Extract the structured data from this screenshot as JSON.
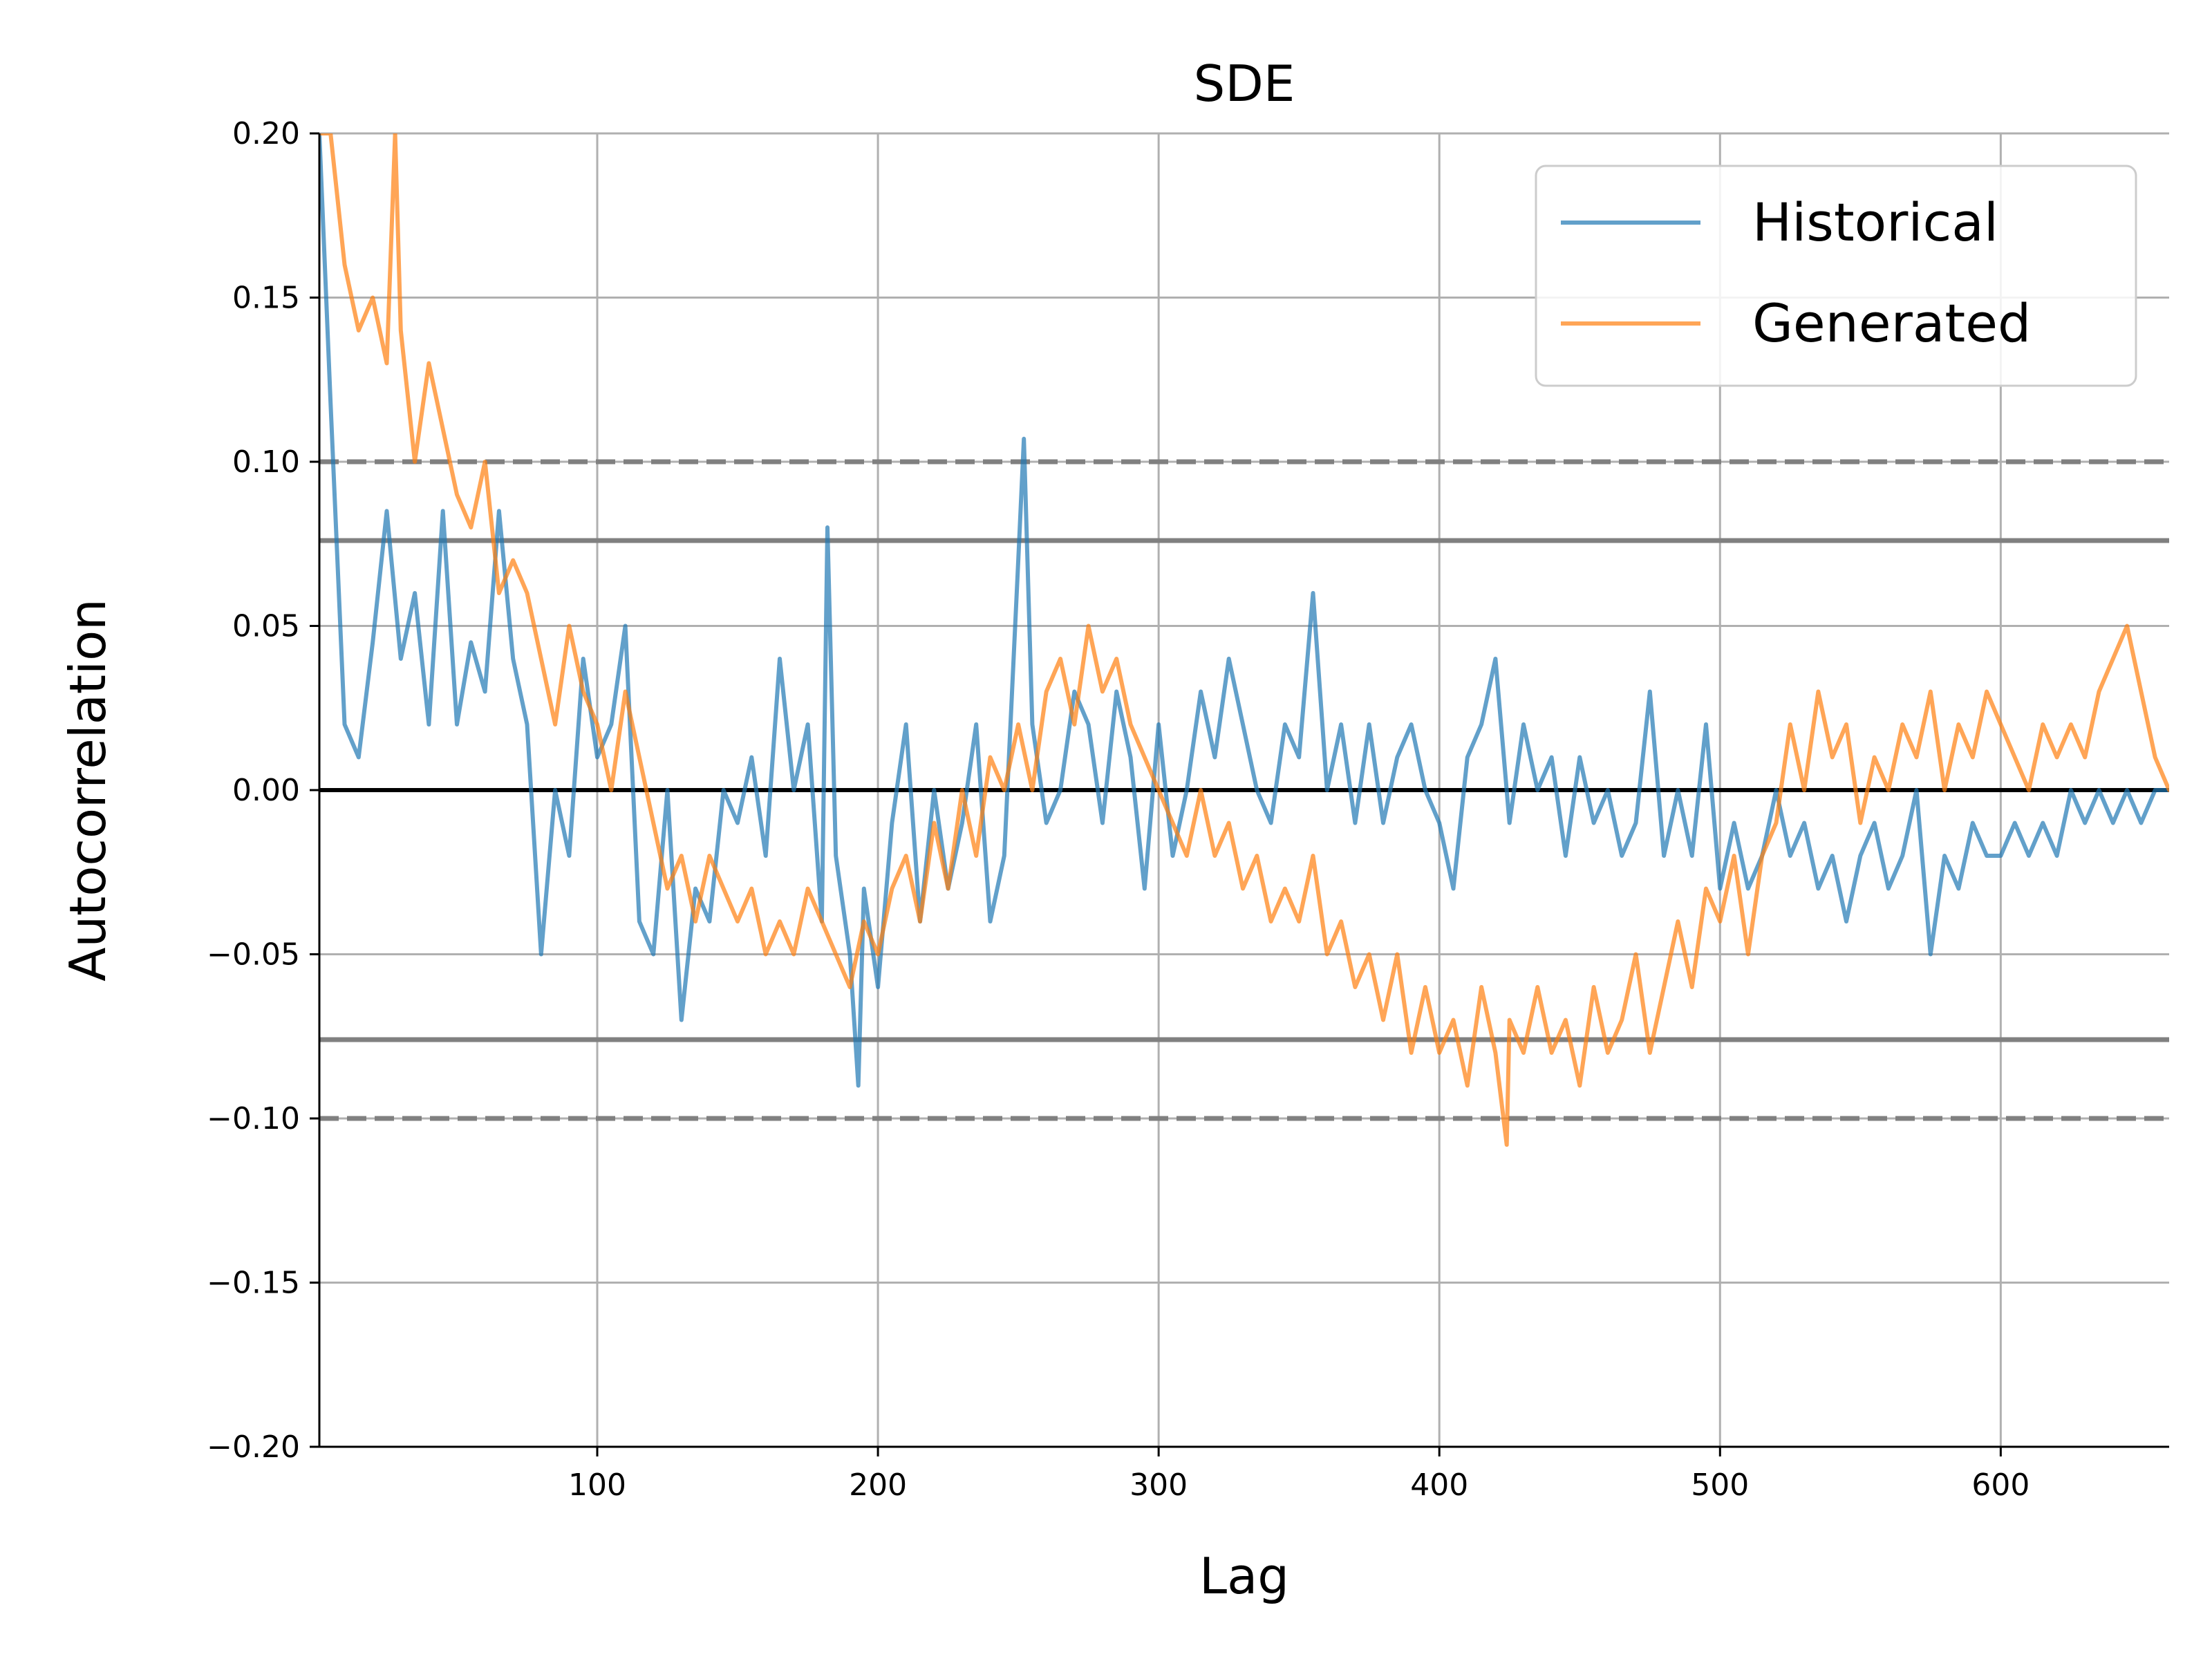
{
  "chart_data": {
    "type": "line",
    "title": "SDE",
    "xlabel": "Lag",
    "ylabel": "Autocorrelation",
    "xlim": [
      1,
      660
    ],
    "ylim": [
      -0.2,
      0.2
    ],
    "xticks": [
      100,
      200,
      300,
      400,
      500,
      600
    ],
    "xtick_labels": [
      "100",
      "200",
      "300",
      "400",
      "500",
      "600"
    ],
    "yticks": [
      -0.2,
      -0.15,
      -0.1,
      -0.05,
      0.0,
      0.05,
      0.1,
      0.15,
      0.2
    ],
    "ytick_labels": [
      "−0.20",
      "−0.15",
      "−0.10",
      "−0.05",
      "0.00",
      "0.05",
      "0.10",
      "0.15",
      "0.20"
    ],
    "grid": true,
    "legend_position": "top-right",
    "reference_lines": {
      "zero": 0.0,
      "solid_band": [
        0.076,
        -0.076
      ],
      "dashed_band": [
        0.1,
        -0.1
      ]
    },
    "colors": {
      "Historical": "#1f77b4",
      "Generated": "#ff7f0e",
      "reference": "#808080",
      "zero": "#000000",
      "grid": "#b0b0b0"
    },
    "series": [
      {
        "name": "Historical",
        "x": [
          1,
          5,
          10,
          15,
          20,
          25,
          30,
          35,
          40,
          45,
          50,
          55,
          60,
          65,
          70,
          75,
          80,
          85,
          90,
          95,
          100,
          105,
          110,
          115,
          120,
          125,
          130,
          135,
          140,
          145,
          150,
          155,
          160,
          165,
          170,
          175,
          180,
          182,
          185,
          190,
          193,
          195,
          200,
          205,
          210,
          215,
          220,
          225,
          230,
          235,
          240,
          245,
          250,
          252,
          255,
          260,
          265,
          270,
          275,
          280,
          285,
          290,
          295,
          300,
          305,
          310,
          315,
          320,
          325,
          330,
          335,
          340,
          345,
          350,
          355,
          360,
          365,
          370,
          375,
          380,
          385,
          390,
          395,
          400,
          405,
          410,
          415,
          420,
          425,
          430,
          435,
          440,
          445,
          450,
          455,
          460,
          465,
          470,
          475,
          480,
          485,
          490,
          495,
          500,
          505,
          510,
          515,
          520,
          525,
          530,
          535,
          540,
          545,
          550,
          555,
          560,
          565,
          570,
          575,
          580,
          585,
          590,
          595,
          600,
          605,
          610,
          615,
          620,
          625,
          630,
          635,
          640,
          645,
          650,
          655,
          660
        ],
        "values": [
          0.2,
          0.118,
          0.02,
          0.01,
          0.045,
          0.085,
          0.04,
          0.06,
          0.02,
          0.085,
          0.02,
          0.045,
          0.03,
          0.085,
          0.04,
          0.02,
          -0.05,
          0.0,
          -0.02,
          0.04,
          0.01,
          0.02,
          0.05,
          -0.04,
          -0.05,
          0.0,
          -0.07,
          -0.03,
          -0.04,
          0.0,
          -0.01,
          0.01,
          -0.02,
          0.04,
          0.0,
          0.02,
          -0.04,
          0.08,
          -0.02,
          -0.05,
          -0.09,
          -0.03,
          -0.06,
          -0.01,
          0.02,
          -0.04,
          0.0,
          -0.03,
          -0.01,
          0.02,
          -0.04,
          -0.02,
          0.07,
          0.107,
          0.02,
          -0.01,
          0.0,
          0.03,
          0.02,
          -0.01,
          0.03,
          0.01,
          -0.03,
          0.02,
          -0.02,
          0.0,
          0.03,
          0.01,
          0.04,
          0.02,
          0.0,
          -0.01,
          0.02,
          0.01,
          0.06,
          0.0,
          0.02,
          -0.01,
          0.02,
          -0.01,
          0.01,
          0.02,
          0.0,
          -0.01,
          -0.03,
          0.01,
          0.02,
          0.04,
          -0.01,
          0.02,
          0.0,
          0.01,
          -0.02,
          0.01,
          -0.01,
          0.0,
          -0.02,
          -0.01,
          0.03,
          -0.02,
          0.0,
          -0.02,
          0.02,
          -0.03,
          -0.01,
          -0.03,
          -0.02,
          0.0,
          -0.02,
          -0.01,
          -0.03,
          -0.02,
          -0.04,
          -0.02,
          -0.01,
          -0.03,
          -0.02,
          0.0,
          -0.05,
          -0.02,
          -0.03,
          -0.01,
          -0.02,
          -0.02,
          -0.01,
          -0.02,
          -0.01,
          -0.02,
          0.0,
          -0.01,
          0.0,
          -0.01,
          0.0,
          -0.01,
          0.0,
          0.0
        ]
      },
      {
        "name": "Generated",
        "x": [
          1,
          5,
          10,
          15,
          20,
          25,
          28,
          30,
          35,
          40,
          45,
          50,
          55,
          60,
          65,
          70,
          75,
          80,
          85,
          90,
          95,
          100,
          105,
          110,
          115,
          120,
          125,
          130,
          135,
          140,
          145,
          150,
          155,
          160,
          165,
          170,
          175,
          180,
          185,
          190,
          195,
          200,
          205,
          210,
          215,
          220,
          225,
          230,
          235,
          240,
          245,
          250,
          255,
          260,
          265,
          270,
          275,
          280,
          285,
          290,
          295,
          300,
          305,
          310,
          315,
          320,
          325,
          330,
          335,
          340,
          345,
          350,
          355,
          360,
          365,
          370,
          375,
          380,
          385,
          390,
          395,
          400,
          405,
          410,
          415,
          420,
          424,
          425,
          430,
          435,
          440,
          445,
          450,
          455,
          460,
          465,
          470,
          475,
          480,
          485,
          490,
          495,
          500,
          505,
          510,
          515,
          520,
          525,
          530,
          535,
          540,
          545,
          550,
          555,
          560,
          565,
          570,
          575,
          580,
          585,
          590,
          595,
          600,
          605,
          610,
          615,
          620,
          625,
          630,
          635,
          640,
          645,
          650,
          655,
          660
        ],
        "values": [
          0.2,
          0.2,
          0.16,
          0.14,
          0.15,
          0.13,
          0.2,
          0.14,
          0.1,
          0.13,
          0.11,
          0.09,
          0.08,
          0.1,
          0.06,
          0.07,
          0.06,
          0.04,
          0.02,
          0.05,
          0.03,
          0.02,
          0.0,
          0.03,
          0.01,
          -0.01,
          -0.03,
          -0.02,
          -0.04,
          -0.02,
          -0.03,
          -0.04,
          -0.03,
          -0.05,
          -0.04,
          -0.05,
          -0.03,
          -0.04,
          -0.05,
          -0.06,
          -0.04,
          -0.05,
          -0.03,
          -0.02,
          -0.04,
          -0.01,
          -0.03,
          0.0,
          -0.02,
          0.01,
          0.0,
          0.02,
          0.0,
          0.03,
          0.04,
          0.02,
          0.05,
          0.03,
          0.04,
          0.02,
          0.01,
          0.0,
          -0.01,
          -0.02,
          0.0,
          -0.02,
          -0.01,
          -0.03,
          -0.02,
          -0.04,
          -0.03,
          -0.04,
          -0.02,
          -0.05,
          -0.04,
          -0.06,
          -0.05,
          -0.07,
          -0.05,
          -0.08,
          -0.06,
          -0.08,
          -0.07,
          -0.09,
          -0.06,
          -0.08,
          -0.108,
          -0.07,
          -0.08,
          -0.06,
          -0.08,
          -0.07,
          -0.09,
          -0.06,
          -0.08,
          -0.07,
          -0.05,
          -0.08,
          -0.06,
          -0.04,
          -0.06,
          -0.03,
          -0.04,
          -0.02,
          -0.05,
          -0.02,
          -0.01,
          0.02,
          0.0,
          0.03,
          0.01,
          0.02,
          -0.01,
          0.01,
          0.0,
          0.02,
          0.01,
          0.03,
          0.0,
          0.02,
          0.01,
          0.03,
          0.02,
          0.01,
          0.0,
          0.02,
          0.01,
          0.02,
          0.01,
          0.03,
          0.04,
          0.05,
          0.03,
          0.01,
          0.0
        ]
      }
    ]
  }
}
